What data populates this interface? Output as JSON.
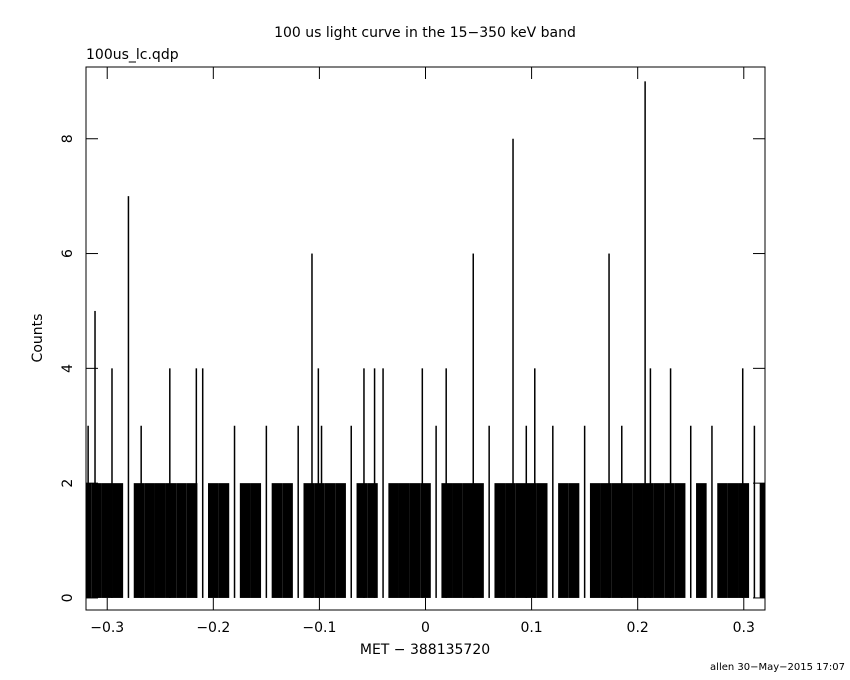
{
  "chart_data": {
    "type": "bar",
    "title": "100 us light curve in the 15−350 keV band",
    "subtitle": "100us_lc.qdp",
    "x_label": "MET − 388135720",
    "y_label": "Counts",
    "credit": "allen 30−May−2015 17:07",
    "color": "#000000",
    "bin_width": 0.01,
    "x": [
      -0.32,
      -0.318,
      -0.3115,
      -0.31,
      -0.3,
      -0.2955,
      -0.29,
      -0.28,
      -0.27,
      -0.268,
      -0.26,
      -0.25,
      -0.241,
      -0.24,
      -0.23,
      -0.22,
      -0.216,
      -0.21,
      -0.2,
      -0.19,
      -0.18,
      -0.17,
      -0.16,
      -0.15,
      -0.14,
      -0.13,
      -0.12,
      -0.11,
      -0.107,
      -0.101,
      -0.1,
      -0.098,
      -0.09,
      -0.08,
      -0.07,
      -0.06,
      -0.058,
      -0.05,
      -0.048,
      -0.04,
      -0.03,
      -0.02,
      -0.01,
      -0.003,
      0,
      0.01,
      0.0195,
      0.02,
      0.03,
      0.04,
      0.045,
      0.05,
      0.06,
      0.07,
      0.08,
      0.0825,
      0.09,
      0.095,
      0.1,
      0.103,
      0.11,
      0.12,
      0.13,
      0.14,
      0.15,
      0.16,
      0.17,
      0.173,
      0.18,
      0.185,
      0.19,
      0.2,
      0.207,
      0.21,
      0.212,
      0.22,
      0.23,
      0.231,
      0.24,
      0.25,
      0.26,
      0.27,
      0.28,
      0.29,
      0.299,
      0.3,
      0.31,
      0.32
    ],
    "values": [
      2,
      3,
      5,
      2,
      2,
      4,
      2,
      7,
      2,
      3,
      2,
      2,
      4,
      2,
      2,
      2,
      4,
      4,
      2,
      2,
      3,
      2,
      2,
      3,
      2,
      2,
      3,
      2,
      6,
      4,
      2,
      3,
      2,
      2,
      3,
      2,
      4,
      2,
      4,
      4,
      2,
      2,
      2,
      4,
      2,
      3,
      4,
      2,
      2,
      2,
      6,
      2,
      3,
      2,
      2,
      8,
      2,
      3,
      2,
      4,
      2,
      3,
      2,
      2,
      3,
      2,
      2,
      6,
      2,
      3,
      2,
      2,
      9,
      2,
      4,
      2,
      2,
      4,
      2,
      3,
      2,
      3,
      2,
      2,
      4,
      2,
      3,
      2
    ],
    "xlim": [
      -0.32,
      0.32
    ],
    "ylim": [
      -0.21,
      9.25
    ],
    "xticks": [
      {
        "value": -0.3,
        "label": "−0.3"
      },
      {
        "value": -0.2,
        "label": "−0.2"
      },
      {
        "value": -0.1,
        "label": "−0.1"
      },
      0,
      0.1,
      0.2,
      0.3
    ],
    "yticks": [
      0,
      2,
      4,
      6,
      8
    ]
  }
}
